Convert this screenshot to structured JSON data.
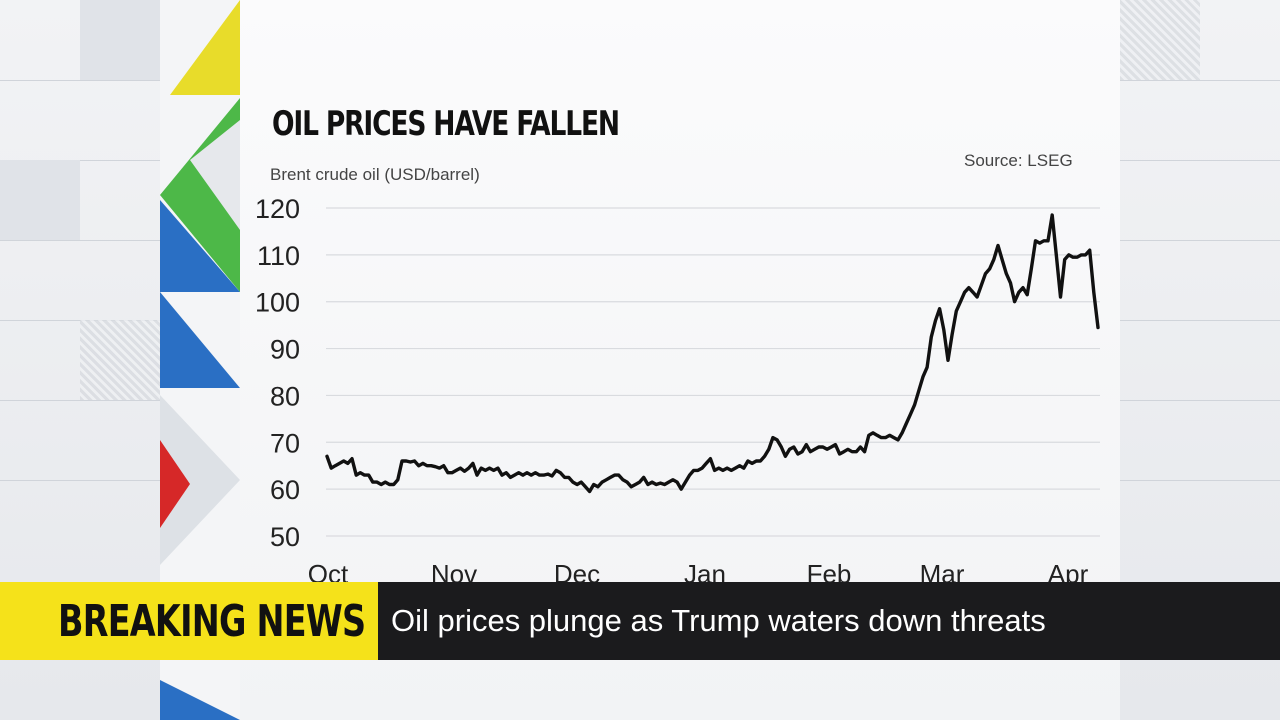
{
  "headline_bar": {
    "label": "BREAKING NEWS",
    "headline": "Oil prices plunge as Trump waters down threats"
  },
  "colors": {
    "label_bg": "#f5e21a",
    "headline_bg": "#1b1b1d",
    "line": "#111111"
  },
  "chart_data": {
    "type": "line",
    "title": "OIL PRICES HAVE FALLEN",
    "ylabel": "Brent crude oil (USD/barrel)",
    "source": "Source: LSEG",
    "ylim": [
      50,
      120
    ],
    "yticks": [
      120,
      110,
      100,
      90,
      80,
      70,
      60,
      50
    ],
    "xticks": [
      "Oct",
      "Nov",
      "Dec",
      "Jan",
      "Feb",
      "Mar",
      "Apr"
    ],
    "grid": true,
    "series": [
      {
        "values": [
          67,
          64.5,
          65,
          65.5,
          66,
          65.5,
          66.5,
          63,
          63.5,
          63,
          63,
          61.5,
          61.5,
          61,
          61.5,
          61,
          61,
          62,
          66,
          66,
          65.8,
          66,
          65,
          65.5,
          65,
          65,
          64.8,
          64.5,
          65,
          63.5,
          63.5,
          64,
          64.5,
          63.8,
          64.5,
          65.5,
          63,
          64.5,
          64,
          64.5,
          64,
          64.5,
          63,
          63.5,
          62.5,
          63,
          63.5,
          63,
          63.5,
          63,
          63.5,
          63,
          63,
          63.2,
          62.8,
          64,
          63.5,
          62.5,
          62.5,
          61.5,
          61,
          61.5,
          60.5,
          59.5,
          61,
          60.5,
          61.5,
          62,
          62.5,
          63,
          63,
          62,
          61.5,
          60.5,
          61,
          61.5,
          62.5,
          61,
          61.5,
          61,
          61.3,
          61,
          61.5,
          62,
          61.5,
          60,
          61.5,
          63,
          64,
          64,
          64.5,
          65.5,
          66.5,
          64,
          64.5,
          64,
          64.5,
          64,
          64.5,
          65,
          64.5,
          66,
          65.5,
          66,
          66,
          67,
          68.5,
          71,
          70.5,
          69,
          67,
          68.5,
          69,
          67.5,
          68,
          69.5,
          68,
          68.5,
          69,
          69,
          68.5,
          69,
          69.5,
          67.5,
          68,
          68.5,
          68,
          68,
          69,
          68,
          71.5,
          72,
          71.5,
          71,
          71,
          71.5,
          71,
          70.5,
          72,
          74,
          76,
          78,
          81,
          84,
          86,
          92.5,
          96,
          98.5,
          94,
          87.5,
          93,
          98,
          100,
          102,
          103,
          102,
          101,
          103.5,
          106,
          107,
          109,
          112,
          109,
          106,
          104,
          100,
          102,
          103,
          101.5,
          107,
          113,
          112.5,
          113,
          113,
          118.5,
          110,
          101,
          109,
          110,
          109.5,
          109.5,
          110,
          110,
          111,
          102,
          94.5
        ]
      }
    ]
  }
}
